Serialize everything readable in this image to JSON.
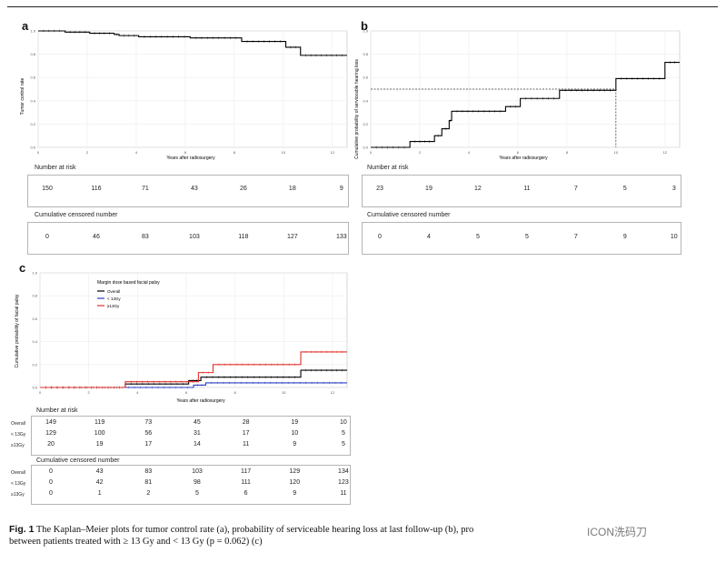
{
  "panels": {
    "a": {
      "letter": "a",
      "chart_data": {
        "type": "line",
        "ylabel": "Tumor control rate",
        "xlabel": "Years after radiosurgery",
        "x_ticks": [
          "0",
          "2",
          "4",
          "6",
          "8",
          "10",
          "12"
        ],
        "y_ticks": [
          "0.0",
          "0.2",
          "0.4",
          "0.6",
          "0.8",
          "1.0"
        ],
        "xlim": [
          0,
          12.6
        ],
        "ylim": [
          0,
          1.0
        ],
        "grid": true,
        "series": [
          {
            "step_x": [
              0,
              1.1,
              2.1,
              3.1,
              3.3,
              4.1,
              6.2,
              8.3,
              10.1,
              10.7,
              12.6
            ],
            "step_y": [
              1.0,
              0.99,
              0.98,
              0.97,
              0.96,
              0.95,
              0.94,
              0.91,
              0.86,
              0.79,
              0.79
            ],
            "color": "#000000"
          }
        ],
        "number_at_risk": {
          "title": "Number at risk",
          "values": [
            "150",
            "116",
            "71",
            "43",
            "26",
            "18",
            "9"
          ]
        },
        "cumulative_censored": {
          "title": "Cumulative censored number",
          "values": [
            "0",
            "46",
            "83",
            "103",
            "118",
            "127",
            "133"
          ]
        }
      }
    },
    "b": {
      "letter": "b",
      "chart_data": {
        "type": "line",
        "ylabel": "Cumulative probability of serviceable hearing loss",
        "xlabel": "Years after radiosurgery",
        "x_ticks": [
          "0",
          "2",
          "4",
          "6",
          "8",
          "10",
          "12"
        ],
        "y_ticks": [
          "0.0",
          "0.2",
          "0.4",
          "0.6",
          "0.8",
          "1.0"
        ],
        "xlim": [
          0,
          12.6
        ],
        "ylim": [
          0,
          1.0
        ],
        "grid": true,
        "median_line": {
          "y": 0.5,
          "x": 10.0
        },
        "series": [
          {
            "step_x": [
              0,
              1.6,
              2.6,
              2.9,
              3.2,
              3.3,
              5.5,
              6.1,
              7.7,
              10.0,
              12.0,
              12.6
            ],
            "step_y": [
              0.0,
              0.05,
              0.1,
              0.16,
              0.23,
              0.31,
              0.35,
              0.42,
              0.49,
              0.59,
              0.73,
              0.73
            ],
            "color": "#000000"
          }
        ],
        "number_at_risk": {
          "title": "Number at risk",
          "values": [
            "23",
            "19",
            "12",
            "11",
            "7",
            "5",
            "3"
          ]
        },
        "cumulative_censored": {
          "title": "Cumulative censored number",
          "values": [
            "0",
            "4",
            "5",
            "5",
            "7",
            "9",
            "10"
          ]
        }
      }
    },
    "c": {
      "letter": "c",
      "chart_data": {
        "type": "line",
        "ylabel": "Cumulative probability of facial palsy",
        "xlabel": "Years after radiosurgery",
        "x_ticks": [
          "0",
          "2",
          "4",
          "6",
          "8",
          "10",
          "12"
        ],
        "y_ticks": [
          "0.0",
          "0.2",
          "0.4",
          "0.6",
          "0.8",
          "1.0"
        ],
        "xlim": [
          0,
          12.6
        ],
        "ylim": [
          0,
          1.0
        ],
        "grid": true,
        "legend": {
          "title": "Margin dose based facial palsy",
          "placement": "top-left",
          "entries": [
            "Overall",
            "< 13Gy",
            "≥13Gy"
          ]
        },
        "series": [
          {
            "name": "Overall",
            "color": "#000000",
            "step_x": [
              0,
              3.5,
              6.1,
              6.6,
              10.7,
              12.6
            ],
            "step_y": [
              0.0,
              0.03,
              0.06,
              0.09,
              0.15,
              0.15
            ]
          },
          {
            "name": "< 13Gy",
            "color": "#2b3fc2",
            "step_x": [
              0,
              6.3,
              6.8,
              12.6
            ],
            "step_y": [
              0.0,
              0.02,
              0.04,
              0.04
            ]
          },
          {
            "name": "≥13Gy",
            "color": "#e0302a",
            "step_x": [
              0,
              3.5,
              6.5,
              7.1,
              10.7,
              12.6
            ],
            "step_y": [
              0.0,
              0.05,
              0.13,
              0.2,
              0.31,
              0.31
            ]
          }
        ],
        "number_at_risk": {
          "title": "Number at risk",
          "row_labels": [
            "Overall",
            "< 13Gy",
            "≥13Gy"
          ],
          "rows": [
            [
              "149",
              "119",
              "73",
              "45",
              "28",
              "19",
              "10"
            ],
            [
              "129",
              "100",
              "56",
              "31",
              "17",
              "10",
              "5"
            ],
            [
              "20",
              "19",
              "17",
              "14",
              "11",
              "9",
              "5"
            ]
          ]
        },
        "cumulative_censored": {
          "title": "Cumulative censored number",
          "row_labels": [
            "Overall",
            "< 13Gy",
            "≥13Gy"
          ],
          "rows": [
            [
              "0",
              "43",
              "83",
              "103",
              "117",
              "129",
              "134"
            ],
            [
              "0",
              "42",
              "81",
              "98",
              "111",
              "120",
              "123"
            ],
            [
              "0",
              "1",
              "2",
              "5",
              "6",
              "9",
              "11"
            ]
          ]
        }
      }
    }
  },
  "caption": {
    "label": "Fig. 1",
    "text": "The Kaplan–Meier plots for tumor control rate (a), probability of serviceable hearing loss at last follow-up (b), pro",
    "line2": "between patients treated with ≥ 13 Gy and < 13 Gy (p = 0.062) (c)"
  },
  "watermark": "ICON洗码刀"
}
